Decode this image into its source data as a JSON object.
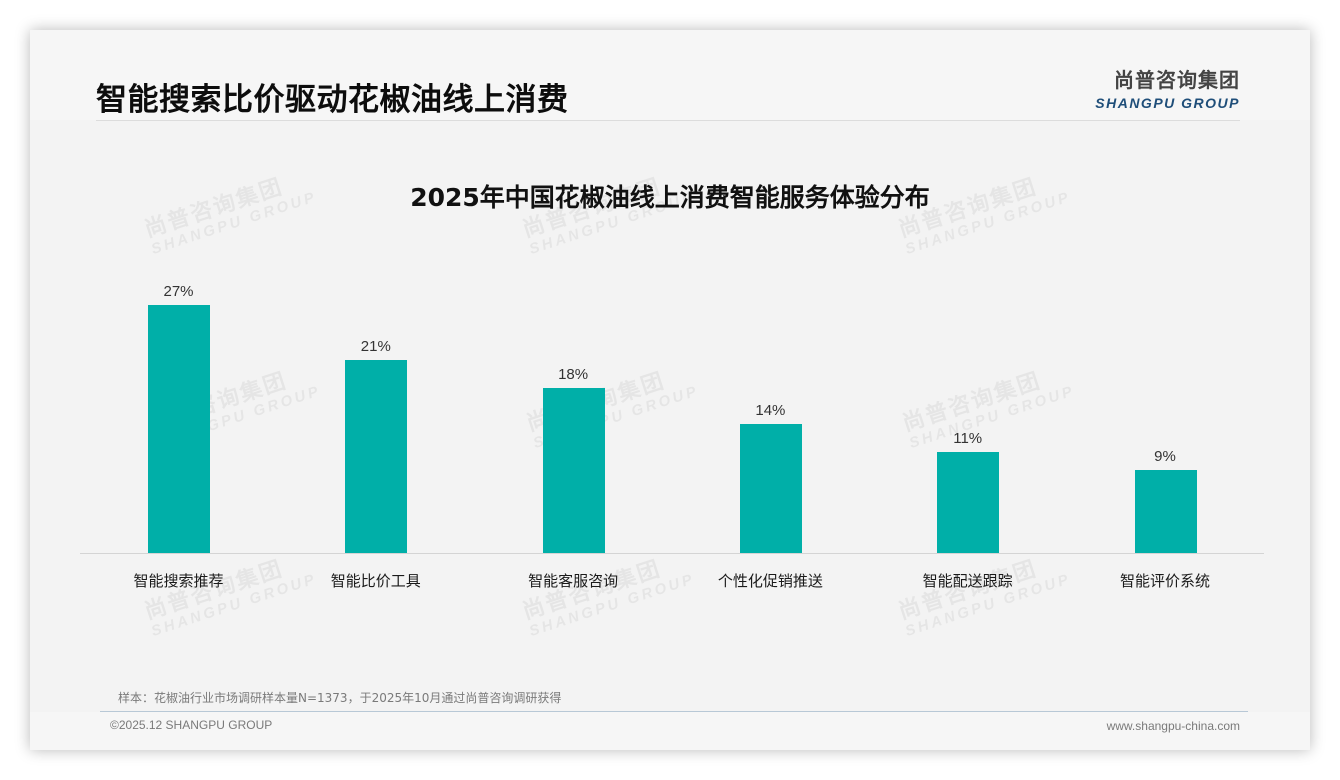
{
  "header": {
    "title": "智能搜索比价驱动花椒油线上消费",
    "logo_cn": "尚普咨询集团",
    "logo_en": "SHANGPU GROUP"
  },
  "watermark": {
    "cn": "尚普咨询集团",
    "en": "SHANGPU GROUP"
  },
  "colors": {
    "bar": "#00afa8",
    "logo_en": "#1f4e79"
  },
  "chart_data": {
    "type": "bar",
    "title": "2025年中国花椒油线上消费智能服务体验分布",
    "categories": [
      "智能搜索推荐",
      "智能比价工具",
      "智能客服咨询",
      "个性化促销推送",
      "智能配送跟踪",
      "智能评价系统"
    ],
    "values": [
      27,
      21,
      18,
      14,
      11,
      9
    ],
    "value_labels": [
      "27%",
      "21%",
      "18%",
      "14%",
      "11%",
      "9%"
    ],
    "unit": "%",
    "xlabel": "",
    "ylabel": "",
    "ylim": [
      0,
      30
    ],
    "grid": false,
    "legend": "none"
  },
  "footer": {
    "sample_note": "样本：花椒油行业市场调研样本量N=1373，于2025年10月通过尚普咨询调研获得",
    "copyright": "©2025.12 SHANGPU GROUP",
    "website": "www.shangpu-china.com"
  }
}
